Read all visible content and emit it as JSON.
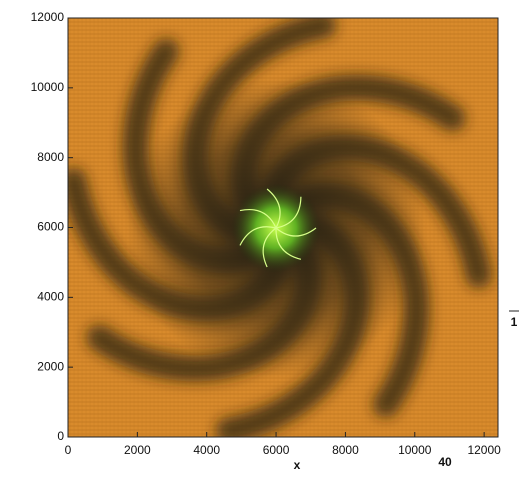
{
  "chart_data": {
    "type": "vector-field",
    "xlabel": "x",
    "xlim": [
      0,
      12400
    ],
    "ylim": [
      0,
      12000
    ],
    "xticks": [
      0,
      2000,
      4000,
      6000,
      8000,
      10000,
      12000
    ],
    "yticks": [
      0,
      2000,
      4000,
      6000,
      8000,
      10000,
      12000
    ],
    "annotations": [
      "40",
      "1"
    ]
  }
}
